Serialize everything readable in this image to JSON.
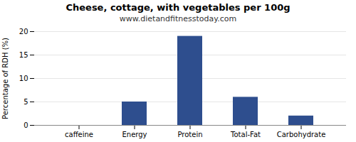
{
  "chart_data": {
    "type": "bar",
    "title": "Cheese, cottage, with vegetables per 100g",
    "subtitle": "www.dietandfitnesstoday.com",
    "categories": [
      "caffeine",
      "Energy",
      "Protein",
      "Total-Fat",
      "Carbohydrate"
    ],
    "values": [
      0,
      5,
      19,
      6,
      2
    ],
    "color": "#2e4e8e",
    "ylabel": "Percentage of RDH (%)",
    "ylim": [
      0,
      20
    ],
    "yticks": [
      0,
      5,
      10,
      15,
      20
    ],
    "grid": true
  }
}
